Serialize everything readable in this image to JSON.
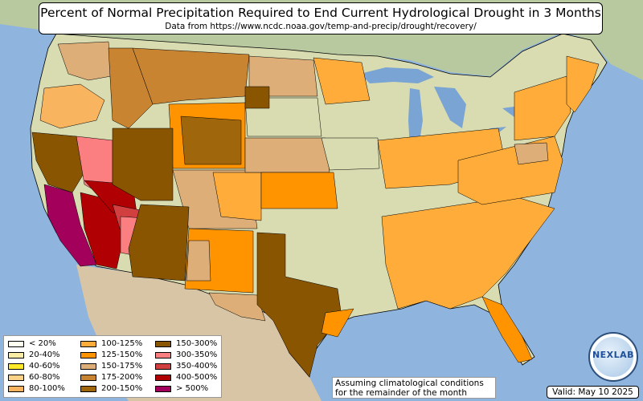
{
  "title": "Percent of Normal Precipitation Required to End Current Hydrological Drought in 3 Months",
  "subtitle": "Data from https://www.ncdc.noaa.gov/temp-and-precip/drought/recovery/",
  "legend": [
    {
      "label": "< 20%",
      "color": "#fffff0"
    },
    {
      "label": "20-40%",
      "color": "#fbeca6"
    },
    {
      "label": "40-60%",
      "color": "#ffea2a"
    },
    {
      "label": "60-80%",
      "color": "#fbd388"
    },
    {
      "label": "80-100%",
      "color": "#f9b45f"
    },
    {
      "label": "100-125%",
      "color": "#ffac3b"
    },
    {
      "label": "125-150%",
      "color": "#ff9400"
    },
    {
      "label": "150-175%",
      "color": "#ddae78"
    },
    {
      "label": "175-200%",
      "color": "#c98431"
    },
    {
      "label": "200-150%",
      "color": "#a0660c"
    },
    {
      "label": "150-300%",
      "color": "#8a5500"
    },
    {
      "label": "300-350%",
      "color": "#fb7f80"
    },
    {
      "label": "350-400%",
      "color": "#d23f40"
    },
    {
      "label": "400-500%",
      "color": "#b10003"
    },
    {
      "label": "> 500%",
      "color": "#a3005b"
    }
  ],
  "note": {
    "line1": "Assuming climatological conditions",
    "line2": "for the remainder of the month"
  },
  "valid": "Valid: May 10 2025",
  "logo_text": "NEXLAB",
  "colors": {
    "ocean": "#8fb4de",
    "land": "#d9dcb0",
    "canada": "#b8c9a0",
    "mexico": "#d7c5a6",
    "lakes": "#7aa4d4",
    "state_border": "#000000"
  }
}
